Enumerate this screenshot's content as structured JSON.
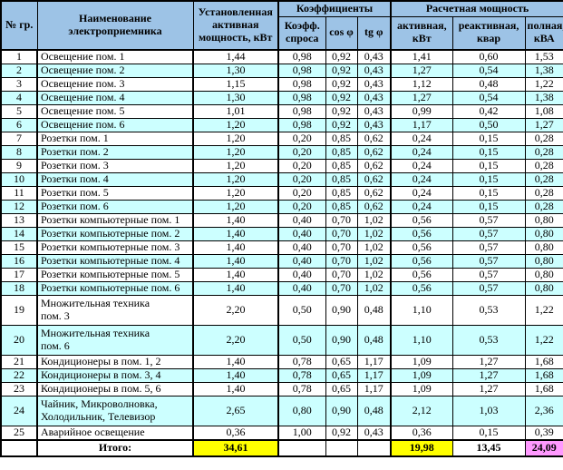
{
  "colors": {
    "header_bg": "#9DC3E6",
    "stripe_bg": "#CCFFFF",
    "total_highlight_yellow": "#FFFF00",
    "total_highlight_pink": "#FF99FF",
    "border": "#000000"
  },
  "table": {
    "header": {
      "no": "№ гр.",
      "name": "Наименование электроприемника",
      "installed": "Установленная активная мощность, кВт",
      "coeff_group": "Коэффициенты",
      "calc_group": "Расчетная мощность",
      "demand": "Коэфф. спроса",
      "cos": "cos φ",
      "tg": "tg φ",
      "active": "активная, кВт",
      "reactive": "реактивная, квар",
      "full": "полная, кВА"
    },
    "rows": [
      {
        "num": "1",
        "name": "Освещение пом. 1",
        "values": [
          "1,44",
          "0,98",
          "0,92",
          "0,43",
          "1,41",
          "0,60",
          "1,53"
        ]
      },
      {
        "num": "2",
        "name": "Освещение пом. 2",
        "values": [
          "1,30",
          "0,98",
          "0,92",
          "0,43",
          "1,27",
          "0,54",
          "1,38"
        ]
      },
      {
        "num": "3",
        "name": "Освещение пом. 3",
        "values": [
          "1,15",
          "0,98",
          "0,92",
          "0,43",
          "1,12",
          "0,48",
          "1,22"
        ]
      },
      {
        "num": "4",
        "name": "Освещение пом. 4",
        "values": [
          "1,30",
          "0,98",
          "0,92",
          "0,43",
          "1,27",
          "0,54",
          "1,38"
        ]
      },
      {
        "num": "5",
        "name": "Освещение пом. 5",
        "values": [
          "1,01",
          "0,98",
          "0,92",
          "0,43",
          "0,99",
          "0,42",
          "1,08"
        ]
      },
      {
        "num": "6",
        "name": "Освещение пом. 6",
        "values": [
          "1,20",
          "0,98",
          "0,92",
          "0,43",
          "1,17",
          "0,50",
          "1,27"
        ]
      },
      {
        "num": "7",
        "name": "Розетки пом. 1",
        "values": [
          "1,20",
          "0,20",
          "0,85",
          "0,62",
          "0,24",
          "0,15",
          "0,28"
        ]
      },
      {
        "num": "8",
        "name": "Розетки пом. 2",
        "values": [
          "1,20",
          "0,20",
          "0,85",
          "0,62",
          "0,24",
          "0,15",
          "0,28"
        ]
      },
      {
        "num": "9",
        "name": "Розетки пом. 3",
        "values": [
          "1,20",
          "0,20",
          "0,85",
          "0,62",
          "0,24",
          "0,15",
          "0,28"
        ]
      },
      {
        "num": "10",
        "name": "Розетки пом. 4",
        "values": [
          "1,20",
          "0,20",
          "0,85",
          "0,62",
          "0,24",
          "0,15",
          "0,28"
        ]
      },
      {
        "num": "11",
        "name": "Розетки пом. 5",
        "values": [
          "1,20",
          "0,20",
          "0,85",
          "0,62",
          "0,24",
          "0,15",
          "0,28"
        ]
      },
      {
        "num": "12",
        "name": "Розетки пом. 6",
        "values": [
          "1,20",
          "0,20",
          "0,85",
          "0,62",
          "0,24",
          "0,15",
          "0,28"
        ]
      },
      {
        "num": "13",
        "name": "Розетки компьютерные пом. 1",
        "values": [
          "1,40",
          "0,40",
          "0,70",
          "1,02",
          "0,56",
          "0,57",
          "0,80"
        ]
      },
      {
        "num": "14",
        "name": "Розетки компьютерные пом. 2",
        "values": [
          "1,40",
          "0,40",
          "0,70",
          "1,02",
          "0,56",
          "0,57",
          "0,80"
        ]
      },
      {
        "num": "15",
        "name": "Розетки компьютерные пом. 3",
        "values": [
          "1,40",
          "0,40",
          "0,70",
          "1,02",
          "0,56",
          "0,57",
          "0,80"
        ]
      },
      {
        "num": "16",
        "name": "Розетки компьютерные пом. 4",
        "values": [
          "1,40",
          "0,40",
          "0,70",
          "1,02",
          "0,56",
          "0,57",
          "0,80"
        ]
      },
      {
        "num": "17",
        "name": "Розетки компьютерные пом. 5",
        "values": [
          "1,40",
          "0,40",
          "0,70",
          "1,02",
          "0,56",
          "0,57",
          "0,80"
        ]
      },
      {
        "num": "18",
        "name": "Розетки компьютерные пом. 6",
        "values": [
          "1,40",
          "0,40",
          "0,70",
          "1,02",
          "0,56",
          "0,57",
          "0,80"
        ]
      },
      {
        "num": "19",
        "name": "Множительная техника\nпом. 3",
        "values": [
          "2,20",
          "0,50",
          "0,90",
          "0,48",
          "1,10",
          "0,53",
          "1,22"
        ]
      },
      {
        "num": "20",
        "name": "Множительная техника\nпом. 6",
        "values": [
          "2,20",
          "0,50",
          "0,90",
          "0,48",
          "1,10",
          "0,53",
          "1,22"
        ]
      },
      {
        "num": "21",
        "name": "Кондиционеры в пом. 1, 2",
        "values": [
          "1,40",
          "0,78",
          "0,65",
          "1,17",
          "1,09",
          "1,27",
          "1,68"
        ]
      },
      {
        "num": "22",
        "name": "Кондиционеры в пом. 3, 4",
        "values": [
          "1,40",
          "0,78",
          "0,65",
          "1,17",
          "1,09",
          "1,27",
          "1,68"
        ]
      },
      {
        "num": "23",
        "name": "Кондиционеры в пом. 5, 6",
        "values": [
          "1,40",
          "0,78",
          "0,65",
          "1,17",
          "1,09",
          "1,27",
          "1,68"
        ]
      },
      {
        "num": "24",
        "name": "Чайник, Микроволновка,\nХолодильник, Телевизор",
        "values": [
          "2,65",
          "0,80",
          "0,90",
          "0,48",
          "2,12",
          "1,03",
          "2,36"
        ]
      },
      {
        "num": "25",
        "name": "Аварийное освещение",
        "values": [
          "0,36",
          "1,00",
          "0,92",
          "0,43",
          "0,36",
          "0,15",
          "0,39"
        ]
      }
    ],
    "totals": {
      "label": "Итого:",
      "installed": "34,61",
      "active": "19,98",
      "reactive": "13,45",
      "full": "24,09"
    }
  }
}
